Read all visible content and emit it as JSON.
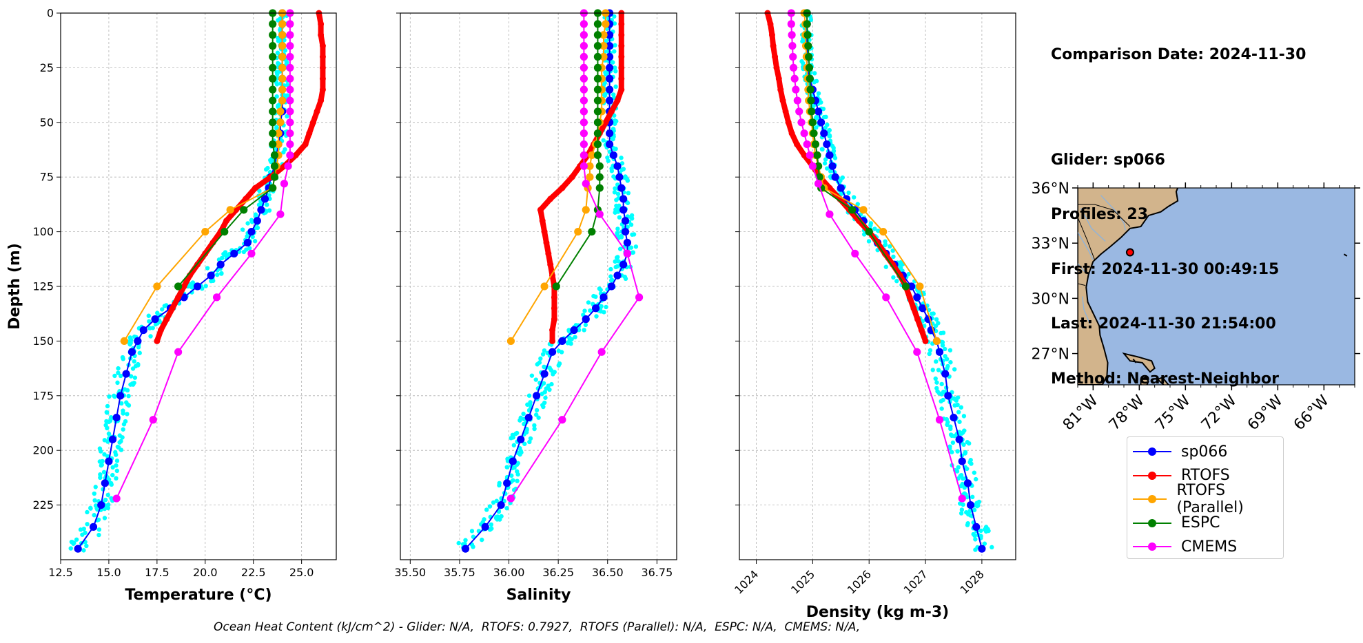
{
  "info": {
    "comparison_date": "Comparison Date: 2024-11-30",
    "glider": "Glider: sp066",
    "profiles": "Profiles: 23",
    "first": "First: 2024-11-30 00:49:15",
    "last": "Last: 2024-11-30 21:54:00",
    "method": "Method: Nearest-Neighbor"
  },
  "ohc_text": "Ocean Heat Content (kJ/cm^2) - Glider: N/A,  RTOFS: 0.7927,  RTOFS (Parallel): N/A,  ESPC: N/A,  CMEMS: N/A,",
  "legend": [
    {
      "label": "sp066",
      "color": "#0000ff"
    },
    {
      "label": "RTOFS",
      "color": "#ff0000"
    },
    {
      "label": "RTOFS (Parallel)",
      "color": "#ffa500"
    },
    {
      "label": "ESPC",
      "color": "#008000"
    },
    {
      "label": "CMEMS",
      "color": "#ff00ff"
    }
  ],
  "colors": {
    "scatter": "#00ffff",
    "land": "#d2b48c",
    "ocean": "#9ab8e2",
    "grid": "#b0b0b0"
  },
  "map": {
    "lat_ticks": [
      "36°N",
      "33°N",
      "30°N",
      "27°N"
    ],
    "lon_ticks": [
      "81°W",
      "78°W",
      "75°W",
      "72°W",
      "69°W",
      "66°W"
    ],
    "extent": {
      "lon": [
        -82,
        -64
      ],
      "lat": [
        25.3,
        36
      ]
    },
    "glider_position": {
      "lon": -78.6,
      "lat": 32.5
    }
  },
  "chart_data": [
    {
      "type": "line",
      "xlabel": "Temperature (°C)",
      "ylabel": "Depth (m)",
      "xlim": [
        12.5,
        26.8
      ],
      "ylim": [
        250,
        0
      ],
      "xticks": [
        "12.5",
        "15.0",
        "17.5",
        "20.0",
        "22.5",
        "25.0"
      ],
      "yticks": [
        "0",
        "25",
        "50",
        "75",
        "100",
        "125",
        "150",
        "175",
        "200",
        "225"
      ],
      "grid": true,
      "series": [
        {
          "name": "sp066",
          "depth": [
            0,
            5,
            10,
            15,
            20,
            25,
            30,
            35,
            40,
            45,
            50,
            55,
            60,
            65,
            70,
            75,
            80,
            85,
            90,
            95,
            100,
            105,
            110,
            115,
            120,
            125,
            130,
            135,
            140,
            145,
            150,
            155,
            165,
            175,
            185,
            195,
            205,
            215,
            225,
            235,
            245
          ],
          "values": [
            24.0,
            24.0,
            24.0,
            24.0,
            24.0,
            24.0,
            24.0,
            24.0,
            24.0,
            24.0,
            23.9,
            23.9,
            23.8,
            23.7,
            23.6,
            23.4,
            23.3,
            23.1,
            22.9,
            22.7,
            22.4,
            22.2,
            21.5,
            20.8,
            20.3,
            19.6,
            18.9,
            18.2,
            17.4,
            16.8,
            16.5,
            16.2,
            15.9,
            15.6,
            15.4,
            15.2,
            15.0,
            14.8,
            14.6,
            14.2,
            13.4
          ]
        },
        {
          "name": "RTOFS",
          "depth": [
            0,
            5,
            10,
            15,
            20,
            25,
            30,
            35,
            40,
            45,
            50,
            55,
            60,
            65,
            70,
            75,
            80,
            85,
            90,
            95,
            100,
            105,
            110,
            115,
            120,
            125,
            130,
            135,
            140,
            145,
            150
          ],
          "values": [
            25.9,
            26.0,
            26.0,
            26.1,
            26.1,
            26.1,
            26.1,
            26.1,
            26.0,
            25.8,
            25.6,
            25.4,
            25.2,
            24.7,
            24.1,
            23.4,
            22.6,
            22.1,
            21.6,
            21.1,
            20.8,
            20.4,
            20.0,
            19.6,
            19.2,
            18.9,
            18.6,
            18.3,
            18.0,
            17.7,
            17.5
          ]
        },
        {
          "name": "RTOFS (Parallel)",
          "depth": [
            0,
            5,
            10,
            15,
            20,
            25,
            30,
            35,
            40,
            45,
            50,
            55,
            60,
            65,
            70,
            75,
            80,
            90,
            100,
            125,
            150
          ],
          "values": [
            24.0,
            24.0,
            24.0,
            24.0,
            24.0,
            24.0,
            24.0,
            24.0,
            24.0,
            23.9,
            23.9,
            23.8,
            23.8,
            23.8,
            23.7,
            23.6,
            23.5,
            21.3,
            20.0,
            17.5,
            15.8
          ]
        },
        {
          "name": "ESPC",
          "depth": [
            0,
            5,
            10,
            15,
            20,
            25,
            30,
            35,
            40,
            45,
            50,
            55,
            60,
            65,
            70,
            75,
            80,
            90,
            100,
            125
          ],
          "values": [
            23.5,
            23.5,
            23.5,
            23.5,
            23.5,
            23.5,
            23.5,
            23.5,
            23.5,
            23.5,
            23.5,
            23.5,
            23.5,
            23.6,
            23.6,
            23.6,
            23.5,
            22.0,
            21.0,
            18.6
          ]
        },
        {
          "name": "CMEMS",
          "depth": [
            0,
            5,
            10,
            15,
            20,
            25,
            30,
            35,
            40,
            45,
            50,
            55,
            60,
            65,
            70,
            78,
            92,
            110,
            130,
            155,
            186,
            222
          ],
          "values": [
            24.4,
            24.4,
            24.4,
            24.4,
            24.4,
            24.4,
            24.4,
            24.4,
            24.4,
            24.4,
            24.4,
            24.4,
            24.4,
            24.4,
            24.3,
            24.1,
            23.9,
            22.4,
            20.6,
            18.6,
            17.3,
            15.4
          ]
        }
      ]
    },
    {
      "type": "line",
      "xlabel": "Salinity",
      "xlim": [
        35.45,
        36.85
      ],
      "ylim": [
        250,
        0
      ],
      "xticks": [
        "35.50",
        "35.75",
        "36.00",
        "36.25",
        "36.50",
        "36.75"
      ],
      "grid": true,
      "series": [
        {
          "name": "sp066",
          "depth": [
            0,
            5,
            10,
            15,
            20,
            25,
            30,
            35,
            40,
            45,
            50,
            55,
            60,
            65,
            70,
            75,
            80,
            85,
            90,
            95,
            100,
            105,
            110,
            115,
            120,
            125,
            130,
            135,
            140,
            145,
            150,
            155,
            165,
            175,
            185,
            195,
            205,
            215,
            225,
            235,
            245
          ],
          "values": [
            36.51,
            36.51,
            36.51,
            36.51,
            36.51,
            36.51,
            36.51,
            36.51,
            36.51,
            36.51,
            36.51,
            36.51,
            36.51,
            36.53,
            36.55,
            36.56,
            36.57,
            36.58,
            36.58,
            36.59,
            36.59,
            36.6,
            36.6,
            36.58,
            36.55,
            36.52,
            36.48,
            36.44,
            36.39,
            36.33,
            36.27,
            36.22,
            36.18,
            36.14,
            36.1,
            36.06,
            36.02,
            35.99,
            35.96,
            35.88,
            35.78
          ]
        },
        {
          "name": "RTOFS",
          "depth": [
            0,
            5,
            10,
            15,
            20,
            25,
            30,
            35,
            40,
            45,
            50,
            55,
            60,
            65,
            70,
            75,
            80,
            85,
            90,
            95,
            100,
            105,
            110,
            115,
            120,
            125,
            130,
            135,
            140,
            145,
            150
          ],
          "values": [
            36.57,
            36.57,
            36.57,
            36.57,
            36.57,
            36.57,
            36.57,
            36.57,
            36.55,
            36.52,
            36.49,
            36.46,
            36.43,
            36.4,
            36.36,
            36.32,
            36.27,
            36.21,
            36.16,
            36.17,
            36.18,
            36.19,
            36.2,
            36.21,
            36.22,
            36.23,
            36.23,
            36.23,
            36.23,
            36.22,
            36.22
          ]
        },
        {
          "name": "RTOFS (Parallel)",
          "depth": [
            0,
            5,
            10,
            15,
            20,
            25,
            30,
            35,
            40,
            45,
            50,
            55,
            60,
            65,
            70,
            75,
            80,
            90,
            100,
            125,
            150
          ],
          "values": [
            36.49,
            36.49,
            36.48,
            36.48,
            36.48,
            36.47,
            36.47,
            36.47,
            36.47,
            36.47,
            36.46,
            36.45,
            36.44,
            36.42,
            36.41,
            36.41,
            36.4,
            36.39,
            36.35,
            36.18,
            36.01
          ]
        },
        {
          "name": "ESPC",
          "depth": [
            0,
            5,
            10,
            15,
            20,
            25,
            30,
            35,
            40,
            45,
            50,
            55,
            60,
            65,
            70,
            75,
            80,
            90,
            100,
            125
          ],
          "values": [
            36.45,
            36.45,
            36.45,
            36.45,
            36.45,
            36.45,
            36.45,
            36.45,
            36.45,
            36.45,
            36.45,
            36.45,
            36.45,
            36.45,
            36.46,
            36.46,
            36.46,
            36.45,
            36.42,
            36.24
          ]
        },
        {
          "name": "CMEMS",
          "depth": [
            0,
            5,
            10,
            15,
            20,
            25,
            30,
            35,
            40,
            45,
            50,
            55,
            60,
            65,
            70,
            78,
            92,
            110,
            130,
            155,
            186,
            222
          ],
          "values": [
            36.38,
            36.38,
            36.38,
            36.38,
            36.38,
            36.38,
            36.38,
            36.38,
            36.38,
            36.38,
            36.38,
            36.38,
            36.38,
            36.38,
            36.38,
            36.39,
            36.46,
            36.6,
            36.66,
            36.47,
            36.27,
            36.01
          ]
        }
      ]
    },
    {
      "type": "line",
      "xlabel": "Density (kg m-3)",
      "xlim": [
        1023.7,
        1028.6
      ],
      "ylim": [
        250,
        0
      ],
      "xticks": [
        "1024",
        "1025",
        "1026",
        "1027",
        "1028"
      ],
      "grid": true,
      "series": [
        {
          "name": "sp066",
          "depth": [
            0,
            5,
            10,
            15,
            20,
            25,
            30,
            35,
            40,
            45,
            50,
            55,
            60,
            65,
            70,
            75,
            80,
            85,
            90,
            95,
            100,
            105,
            110,
            115,
            120,
            125,
            130,
            135,
            140,
            145,
            150,
            155,
            165,
            175,
            185,
            195,
            205,
            215,
            225,
            235,
            245
          ],
          "values": [
            1024.9,
            1024.9,
            1024.9,
            1024.9,
            1024.9,
            1024.9,
            1024.95,
            1025.0,
            1025.05,
            1025.1,
            1025.15,
            1025.2,
            1025.25,
            1025.3,
            1025.35,
            1025.4,
            1025.5,
            1025.6,
            1025.75,
            1025.9,
            1026.0,
            1026.15,
            1026.3,
            1026.45,
            1026.6,
            1026.75,
            1026.85,
            1026.95,
            1027.05,
            1027.1,
            1027.2,
            1027.25,
            1027.35,
            1027.4,
            1027.5,
            1027.6,
            1027.65,
            1027.75,
            1027.8,
            1027.9,
            1028.0
          ]
        },
        {
          "name": "RTOFS",
          "depth": [
            0,
            5,
            10,
            15,
            20,
            25,
            30,
            35,
            40,
            45,
            50,
            55,
            60,
            65,
            70,
            75,
            80,
            85,
            90,
            95,
            100,
            105,
            110,
            115,
            120,
            125,
            130,
            135,
            140,
            145,
            150
          ],
          "values": [
            1024.2,
            1024.25,
            1024.28,
            1024.3,
            1024.33,
            1024.36,
            1024.4,
            1024.43,
            1024.47,
            1024.52,
            1024.57,
            1024.63,
            1024.72,
            1024.85,
            1025.0,
            1025.13,
            1025.3,
            1025.48,
            1025.65,
            1025.82,
            1026.0,
            1026.15,
            1026.28,
            1026.42,
            1026.55,
            1026.65,
            1026.72,
            1026.79,
            1026.86,
            1026.93,
            1027.0
          ]
        },
        {
          "name": "RTOFS (Parallel)",
          "depth": [
            0,
            5,
            10,
            15,
            20,
            25,
            30,
            35,
            40,
            45,
            50,
            55,
            60,
            65,
            70,
            75,
            80,
            90,
            100,
            125,
            150
          ],
          "values": [
            1024.85,
            1024.87,
            1024.87,
            1024.88,
            1024.89,
            1024.9,
            1024.91,
            1024.92,
            1024.93,
            1024.95,
            1024.98,
            1025.0,
            1025.02,
            1025.05,
            1025.1,
            1025.15,
            1025.2,
            1025.9,
            1026.25,
            1026.9,
            1027.2
          ]
        },
        {
          "name": "ESPC",
          "depth": [
            0,
            5,
            10,
            15,
            20,
            25,
            30,
            35,
            40,
            45,
            50,
            55,
            60,
            65,
            70,
            75,
            80,
            90,
            100,
            125
          ],
          "values": [
            1024.9,
            1024.9,
            1024.91,
            1024.92,
            1024.93,
            1024.94,
            1024.95,
            1024.96,
            1024.97,
            1024.98,
            1025.0,
            1025.02,
            1025.05,
            1025.08,
            1025.1,
            1025.12,
            1025.15,
            1025.7,
            1026.0,
            1026.65
          ]
        },
        {
          "name": "CMEMS",
          "depth": [
            0,
            5,
            10,
            15,
            20,
            25,
            30,
            35,
            40,
            45,
            50,
            55,
            60,
            65,
            70,
            78,
            92,
            110,
            130,
            155,
            186,
            222
          ],
          "values": [
            1024.62,
            1024.62,
            1024.63,
            1024.64,
            1024.65,
            1024.66,
            1024.68,
            1024.7,
            1024.73,
            1024.76,
            1024.8,
            1024.85,
            1024.9,
            1024.95,
            1025.0,
            1025.1,
            1025.3,
            1025.75,
            1026.3,
            1026.85,
            1027.25,
            1027.65
          ]
        }
      ]
    }
  ]
}
